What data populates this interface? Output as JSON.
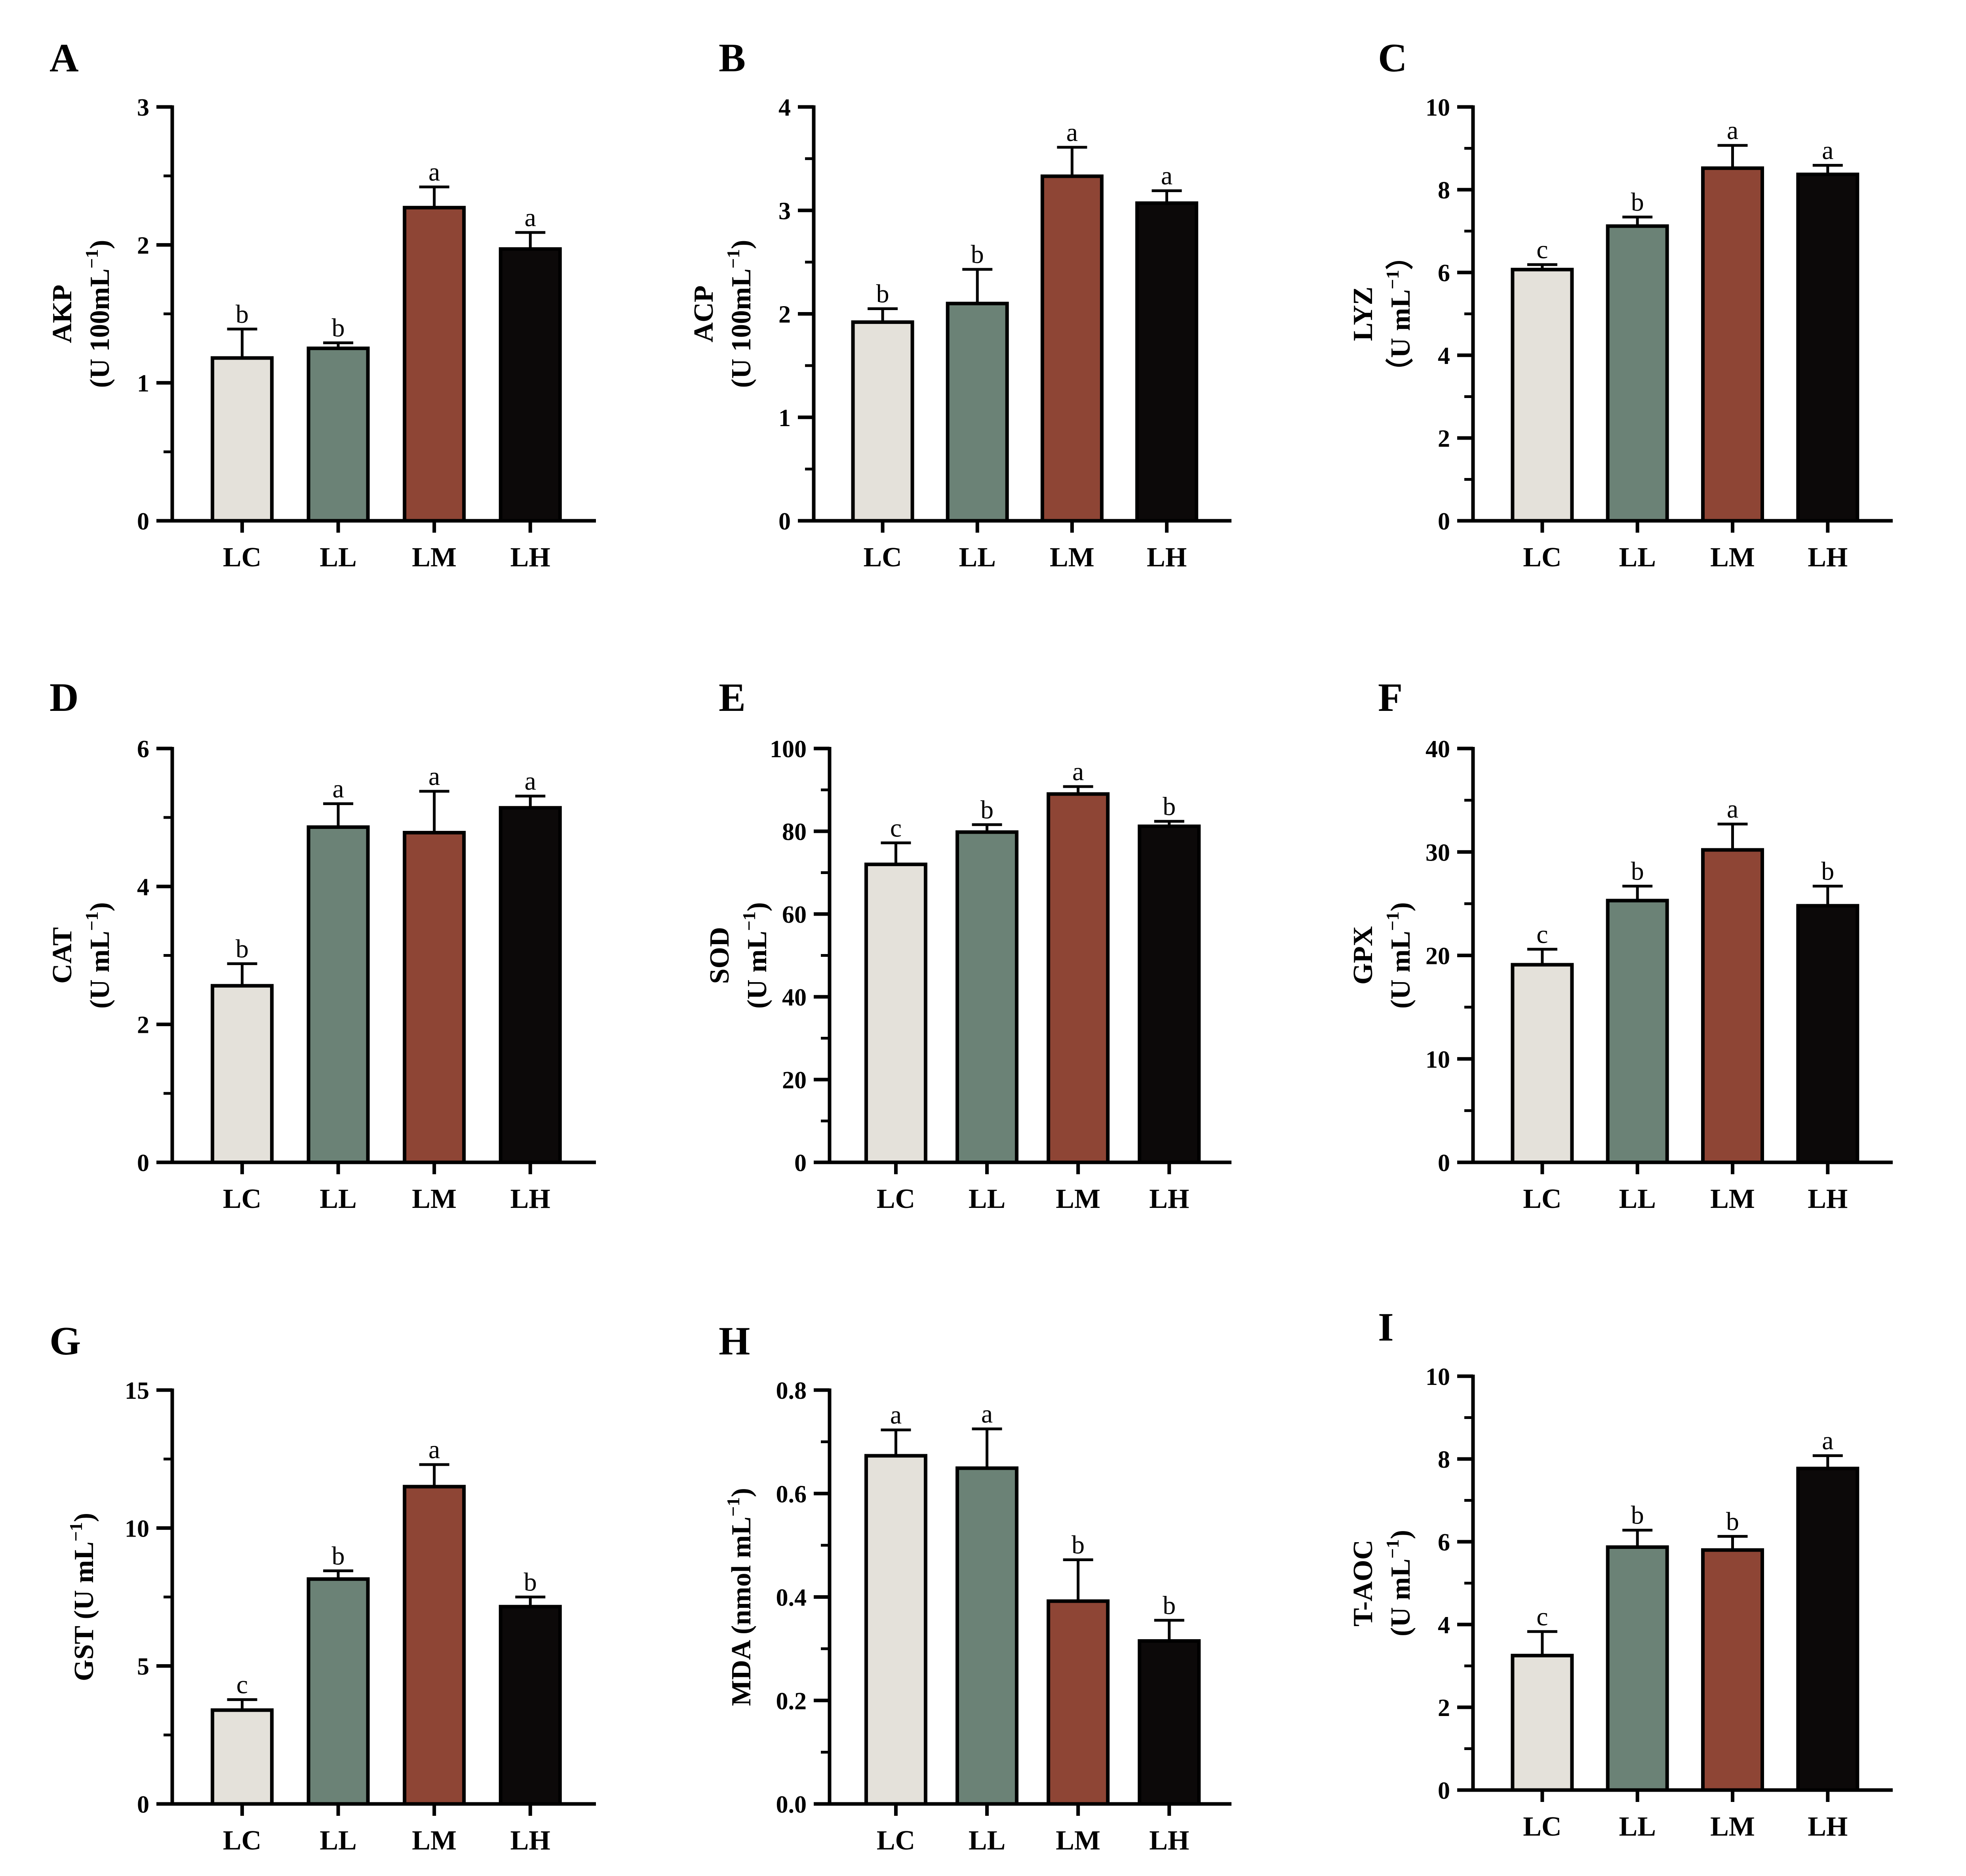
{
  "figure": {
    "panel_count": 9
  },
  "colors": {
    "LC": "#e4e1da",
    "LL": "#6b8276",
    "LM": "#8e4535",
    "LH": "#0c0909",
    "axis": "#000000"
  },
  "chart_data": [
    {
      "panel": "A",
      "type": "bar",
      "categories": [
        "LC",
        "LL",
        "LM",
        "LH"
      ],
      "values": [
        1.18,
        1.25,
        2.27,
        1.97
      ],
      "errors": [
        0.21,
        0.04,
        0.15,
        0.12
      ],
      "significance": [
        "b",
        "b",
        "a",
        "a"
      ],
      "ylabel_lines": [
        "AKP",
        "(U 100mL"
      ],
      "ylabel_sup": "−1",
      "ylabel_close": ")",
      "ylim": [
        0,
        3
      ],
      "ticks": [
        0,
        1,
        2,
        3
      ],
      "tick_labels": [
        "0",
        "1",
        "2",
        "3"
      ],
      "minor_step": 0.5
    },
    {
      "panel": "B",
      "type": "bar",
      "categories": [
        "LC",
        "LL",
        "LM",
        "LH"
      ],
      "values": [
        1.92,
        2.1,
        3.33,
        3.07
      ],
      "errors": [
        0.13,
        0.33,
        0.28,
        0.12
      ],
      "significance": [
        "b",
        "b",
        "a",
        "a"
      ],
      "ylabel_lines": [
        "ACP",
        "(U 100mL"
      ],
      "ylabel_sup": "−1",
      "ylabel_close": ")",
      "ylim": [
        0,
        4
      ],
      "ticks": [
        0,
        1,
        2,
        3,
        4
      ],
      "tick_labels": [
        "0",
        "1",
        "2",
        "3",
        "4"
      ],
      "minor_step": 0.5
    },
    {
      "panel": "C",
      "type": "bar",
      "categories": [
        "LC",
        "LL",
        "LM",
        "LH"
      ],
      "values": [
        6.07,
        7.12,
        8.52,
        8.37
      ],
      "errors": [
        0.12,
        0.22,
        0.55,
        0.22
      ],
      "significance": [
        "c",
        "b",
        "a",
        "a"
      ],
      "ylabel_lines": [
        "LYZ",
        "（U mL"
      ],
      "ylabel_sup": "−1",
      "ylabel_close": "）",
      "ylim": [
        0,
        10
      ],
      "ticks": [
        0,
        2,
        4,
        6,
        8,
        10
      ],
      "tick_labels": [
        "0",
        "2",
        "4",
        "6",
        "8",
        "10"
      ],
      "minor_step": 1
    },
    {
      "panel": "D",
      "type": "bar",
      "categories": [
        "LC",
        "LL",
        "LM",
        "LH"
      ],
      "values": [
        2.56,
        4.86,
        4.78,
        5.14
      ],
      "errors": [
        0.32,
        0.34,
        0.6,
        0.17
      ],
      "significance": [
        "b",
        "a",
        "a",
        "a"
      ],
      "ylabel_lines": [
        "CAT",
        "(U mL"
      ],
      "ylabel_sup": "−1",
      "ylabel_close": ")",
      "ylim": [
        0,
        6
      ],
      "ticks": [
        0,
        2,
        4,
        6
      ],
      "tick_labels": [
        "0",
        "2",
        "4",
        "6"
      ],
      "minor_step": 1
    },
    {
      "panel": "E",
      "type": "bar",
      "categories": [
        "LC",
        "LL",
        "LM",
        "LH"
      ],
      "values": [
        72,
        79.8,
        89,
        81.2
      ],
      "errors": [
        5.2,
        1.8,
        1.8,
        1.2
      ],
      "significance": [
        "c",
        "b",
        "a",
        "b"
      ],
      "ylabel_lines": [
        "SOD",
        "(U mL"
      ],
      "ylabel_sup": "−1",
      "ylabel_close": ")",
      "ylim": [
        0,
        100
      ],
      "ticks": [
        0,
        20,
        40,
        60,
        80,
        100
      ],
      "tick_labels": [
        "0",
        "20",
        "40",
        "60",
        "80",
        "100"
      ],
      "minor_step": 10
    },
    {
      "panel": "F",
      "type": "bar",
      "categories": [
        "LC",
        "LL",
        "LM",
        "LH"
      ],
      "values": [
        19.1,
        25.3,
        30.2,
        24.8
      ],
      "errors": [
        1.5,
        1.4,
        2.5,
        1.9
      ],
      "significance": [
        "c",
        "b",
        "a",
        "b"
      ],
      "ylabel_lines": [
        "GPX",
        "(U mL"
      ],
      "ylabel_sup": "−1",
      "ylabel_close": ")",
      "ylim": [
        0,
        40
      ],
      "ticks": [
        0,
        10,
        20,
        30,
        40
      ],
      "tick_labels": [
        "0",
        "10",
        "20",
        "30",
        "40"
      ],
      "minor_step": 5
    },
    {
      "panel": "G",
      "type": "bar",
      "categories": [
        "LC",
        "LL",
        "LM",
        "LH"
      ],
      "values": [
        3.4,
        8.15,
        11.5,
        7.15
      ],
      "errors": [
        0.38,
        0.3,
        0.8,
        0.35
      ],
      "significance": [
        "c",
        "b",
        "a",
        "b"
      ],
      "ylabel_lines": [
        "GST (U mL"
      ],
      "ylabel_sup": "−1",
      "ylabel_close": ")",
      "ylim": [
        0,
        15
      ],
      "ticks": [
        0,
        5,
        10,
        15
      ],
      "tick_labels": [
        "0",
        "5",
        "10",
        "15"
      ],
      "minor_step": 2.5
    },
    {
      "panel": "H",
      "type": "bar",
      "categories": [
        "LC",
        "LL",
        "LM",
        "LH"
      ],
      "values": [
        0.673,
        0.649,
        0.392,
        0.315
      ],
      "errors": [
        0.05,
        0.076,
        0.08,
        0.04
      ],
      "significance": [
        "a",
        "a",
        "b",
        "b"
      ],
      "ylabel_lines": [
        "MDA (nmol mL"
      ],
      "ylabel_sup": "−1",
      "ylabel_close": ")",
      "ylim": [
        0,
        0.8
      ],
      "ticks": [
        0,
        0.2,
        0.4,
        0.6,
        0.8
      ],
      "tick_labels": [
        "0.0",
        "0.2",
        "0.4",
        "0.6",
        "0.8"
      ],
      "minor_step": 0.1
    },
    {
      "panel": "I",
      "type": "bar",
      "categories": [
        "LC",
        "LL",
        "LM",
        "LH"
      ],
      "values": [
        3.25,
        5.87,
        5.8,
        7.77
      ],
      "errors": [
        0.58,
        0.41,
        0.33,
        0.31
      ],
      "significance": [
        "c",
        "b",
        "b",
        "a"
      ],
      "ylabel_lines": [
        "T-AOC",
        "(U mL"
      ],
      "ylabel_sup": "−1",
      "ylabel_close": ")",
      "ylim": [
        0,
        10
      ],
      "ticks": [
        0,
        2,
        4,
        6,
        8,
        10
      ],
      "tick_labels": [
        "0",
        "2",
        "4",
        "6",
        "8",
        "10"
      ],
      "minor_step": 1
    }
  ]
}
